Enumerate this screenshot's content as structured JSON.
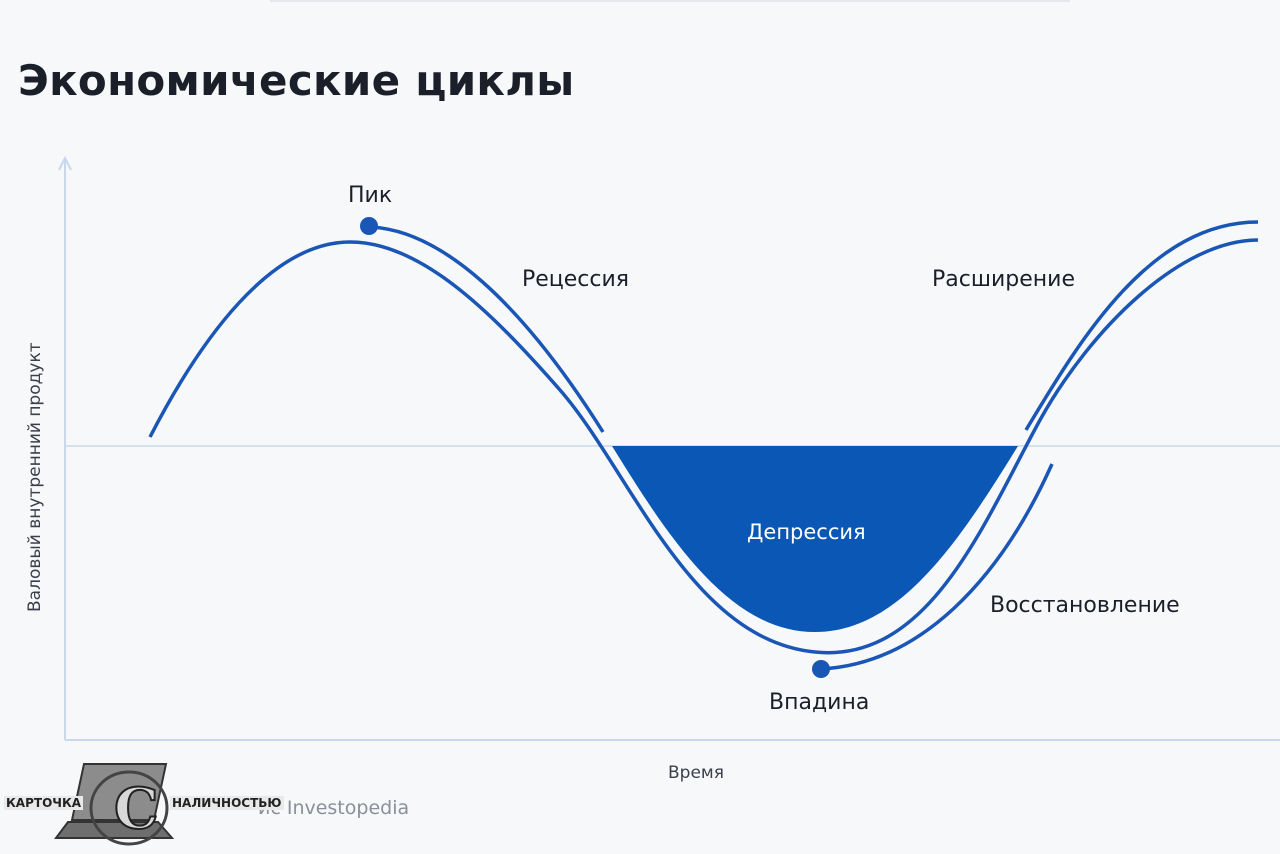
{
  "title": "Экономические циклы",
  "labels": {
    "peak": "Пик",
    "recession": "Рецессия",
    "depression": "Депрессия",
    "trough": "Впадина",
    "recovery": "Восстановление",
    "expansion": "Расширение"
  },
  "axes": {
    "y": "Валовый внутренний продукт",
    "x": "Время"
  },
  "source": "ис Investopedia",
  "watermark": {
    "left": "КАРТОЧКА",
    "right": "НАЛИЧНОСТЬЮ",
    "letter": "С"
  },
  "colors": {
    "curve": "#1a56b5",
    "fill": "#0a57b5",
    "axis": "#c9d7ea",
    "text": "#1b1f2a"
  }
}
